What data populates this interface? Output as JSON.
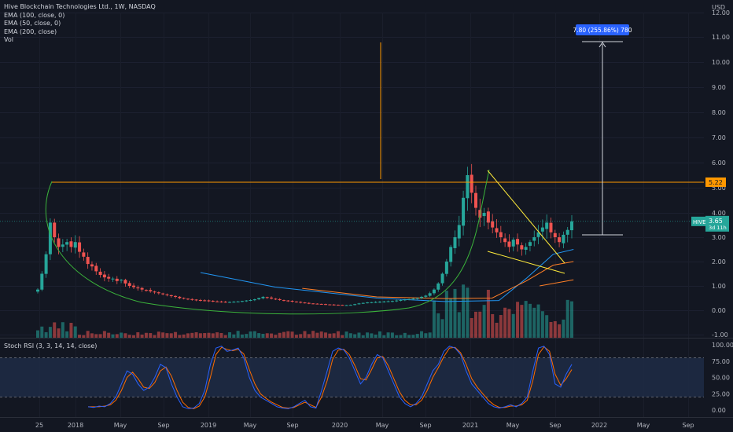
{
  "header": {
    "title": "Hive Blockchain Technologies Ltd., 1W, NASDAQ",
    "indicators": [
      "EMA (100, close, 0)",
      "EMA (50, close, 0)",
      "EMA (200, close)",
      "Vol"
    ],
    "rsi_title": "Stoch RSI (3, 3, 14, 14, close)",
    "currency": "USD"
  },
  "colors": {
    "background": "#131722",
    "up": "#26a69a",
    "down": "#ef5350",
    "ema100": "#ff7f27",
    "ema50": "#2196f3",
    "arc": "#3bb33b",
    "resistance": "#ff9800",
    "wedge": "#ffeb3b",
    "rsi_k": "#2962ff",
    "rsi_d": "#ff6d00"
  },
  "chart_data": [
    {
      "type": "candlestick",
      "ticker": "HIVE",
      "price_axis": {
        "ticks": [
          "12.00",
          "11.00",
          "10.00",
          "9.00",
          "8.00",
          "7.00",
          "6.00",
          "5.00",
          "4.00",
          "3.00",
          "2.00",
          "1.00",
          "0.00",
          "-1.00"
        ],
        "scale": "log",
        "range": [
          -1,
          12
        ]
      },
      "time_axis": [
        "25",
        "2018",
        "May",
        "Sep",
        "2019",
        "May",
        "Sep",
        "2020",
        "May",
        "Sep",
        "2021",
        "May",
        "Sep",
        "2022",
        "May",
        "Sep"
      ],
      "resistance_level": {
        "value": 5.22,
        "label": "5.22"
      },
      "last_price": {
        "value": 3.65,
        "label": "3.65",
        "countdown": "3d 11h"
      },
      "measure_label": "7.80 (255.86%) 780",
      "price_series_weekly": [
        0.85,
        1.5,
        2.3,
        3.6,
        3.0,
        2.6,
        2.7,
        2.8,
        2.6,
        2.8,
        2.4,
        2.2,
        1.9,
        1.8,
        1.6,
        1.45,
        1.35,
        1.3,
        1.3,
        1.2,
        1.25,
        1.1,
        1.0,
        0.95,
        0.9,
        0.85,
        0.82,
        0.78,
        0.74,
        0.7,
        0.66,
        0.62,
        0.58,
        0.55,
        0.5,
        0.48,
        0.46,
        0.44,
        0.42,
        0.4,
        0.4,
        0.38,
        0.37,
        0.36,
        0.35,
        0.34,
        0.34,
        0.35,
        0.36,
        0.38,
        0.4,
        0.42,
        0.45,
        0.5,
        0.55,
        0.52,
        0.48,
        0.45,
        0.42,
        0.4,
        0.38,
        0.36,
        0.34,
        0.32,
        0.3,
        0.28,
        0.27,
        0.26,
        0.25,
        0.24,
        0.23,
        0.22,
        0.22,
        0.21,
        0.21,
        0.22,
        0.25,
        0.28,
        0.3,
        0.32,
        0.33,
        0.34,
        0.35,
        0.36,
        0.37,
        0.38,
        0.4,
        0.42,
        0.44,
        0.46,
        0.48,
        0.5,
        0.55,
        0.6,
        0.7,
        0.85,
        1.1,
        1.5,
        2.0,
        2.6,
        3.0,
        3.5,
        4.6,
        5.5,
        4.8,
        4.2,
        3.8,
        4.0,
        3.6,
        3.4,
        3.2,
        3.0,
        2.8,
        2.6,
        2.9,
        2.7,
        2.5,
        2.6,
        2.8,
        3.0,
        3.2,
        3.4,
        3.6,
        3.2,
        3.0,
        2.8,
        3.1,
        3.3,
        3.65
      ],
      "series": [
        {
          "name": "EMA (50, close, 0)",
          "points": [
            [
              0.24,
              1.55
            ],
            [
              0.35,
              0.95
            ],
            [
              0.5,
              0.5
            ],
            [
              0.6,
              0.36
            ],
            [
              0.68,
              0.4
            ],
            [
              0.72,
              1.3
            ],
            [
              0.76,
              2.3
            ],
            [
              0.79,
              2.5
            ]
          ]
        },
        {
          "name": "EMA (100, close, 0)",
          "points": [
            [
              0.39,
              0.9
            ],
            [
              0.5,
              0.55
            ],
            [
              0.6,
              0.48
            ],
            [
              0.67,
              0.5
            ],
            [
              0.72,
              1.2
            ],
            [
              0.76,
              1.85
            ],
            [
              0.79,
              2.0
            ]
          ]
        },
        {
          "name": "EMA (200, close)",
          "points": [
            [
              0.74,
              1.0
            ],
            [
              0.79,
              1.25
            ]
          ]
        }
      ]
    },
    {
      "type": "line",
      "name": "Stoch RSI (3, 3, 14, 14, close)",
      "y_ticks": [
        "100.00",
        "75.00",
        "50.00",
        "25.00",
        "0.00"
      ],
      "ylim": [
        0,
        100
      ],
      "bands": [
        20,
        80
      ],
      "k_series": [
        5,
        4,
        6,
        5,
        10,
        20,
        40,
        60,
        55,
        40,
        30,
        35,
        50,
        70,
        65,
        40,
        20,
        5,
        2,
        3,
        10,
        30,
        70,
        95,
        98,
        90,
        92,
        95,
        80,
        50,
        30,
        20,
        15,
        10,
        5,
        3,
        2,
        5,
        10,
        15,
        5,
        3,
        30,
        60,
        90,
        95,
        92,
        80,
        60,
        40,
        50,
        70,
        85,
        80,
        60,
        40,
        20,
        10,
        5,
        10,
        20,
        40,
        60,
        70,
        90,
        98,
        95,
        85,
        60,
        40,
        30,
        20,
        10,
        5,
        3,
        5,
        8,
        5,
        10,
        20,
        60,
        95,
        98,
        85,
        40,
        35,
        55,
        70
      ],
      "d_series": [
        5,
        5,
        5,
        6,
        8,
        15,
        30,
        50,
        58,
        48,
        35,
        33,
        42,
        60,
        66,
        52,
        30,
        12,
        4,
        2,
        6,
        20,
        50,
        85,
        96,
        93,
        91,
        93,
        86,
        62,
        40,
        25,
        18,
        12,
        8,
        4,
        3,
        4,
        8,
        12,
        8,
        4,
        20,
        45,
        78,
        92,
        93,
        85,
        68,
        48,
        46,
        62,
        80,
        82,
        68,
        48,
        28,
        15,
        8,
        8,
        15,
        30,
        50,
        65,
        82,
        95,
        96,
        88,
        70,
        48,
        35,
        25,
        15,
        8,
        4,
        4,
        6,
        6,
        8,
        15,
        45,
        85,
        97,
        90,
        55,
        38,
        48,
        62
      ]
    }
  ]
}
